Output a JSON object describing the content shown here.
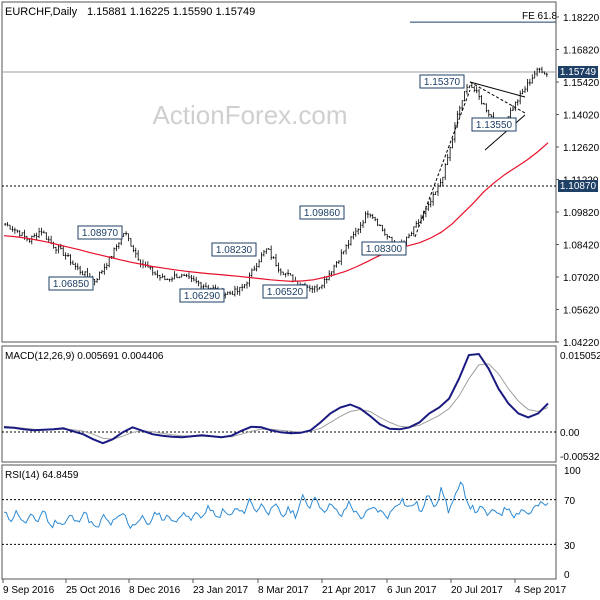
{
  "header": {
    "symbol_tf": "EURCHF,Daily",
    "ohlc": "1.15881 1.16225 1.15590 1.15749"
  },
  "watermark": "ActionForex.com",
  "colors": {
    "candle": "#000000",
    "ma": "#e8102a",
    "macd": "#1a1a80",
    "signal": "#a0a0a0",
    "rsi": "#2d8ad4",
    "grid": "#9aa0a8",
    "fe": "#1e3f66"
  },
  "chart_data": [
    {
      "type": "candlestick",
      "name": "price",
      "x_ticks": [
        "9 Sep 2016",
        "25 Oct 2016",
        "8 Dec 2016",
        "23 Jan 2017",
        "8 Mar 2017",
        "21 Apr 2017",
        "6 Jun 2017",
        "20 Jul 2017",
        "4 Sep 2017"
      ],
      "y_ticks": [
        "1.18220",
        "1.16820",
        "1.15420",
        "1.14020",
        "1.12620",
        "1.11220",
        "1.09820",
        "1.08420",
        "1.07020",
        "1.05620",
        "1.04220"
      ],
      "ylim": [
        1.0422,
        1.1822
      ],
      "last_price": "1.15749",
      "level_line": "1.10870",
      "fib_label": "FE 61.8",
      "fib_level": 1.18,
      "annotations": [
        {
          "text": "1.08970",
          "value": 1.0897
        },
        {
          "text": "1.06850",
          "value": 1.0685
        },
        {
          "text": "1.08230",
          "value": 1.0823
        },
        {
          "text": "1.06290",
          "value": 1.0629
        },
        {
          "text": "1.06520",
          "value": 1.0652
        },
        {
          "text": "1.09860",
          "value": 1.0986
        },
        {
          "text": "1.08300",
          "value": 1.083
        },
        {
          "text": "1.15370",
          "value": 1.1537
        },
        {
          "text": "1.13550",
          "value": 1.1355
        }
      ],
      "close_path": [
        1.093,
        1.0915,
        1.09,
        1.088,
        1.086,
        1.088,
        1.0905,
        1.087,
        1.084,
        1.082,
        1.08,
        1.077,
        1.074,
        1.072,
        1.07,
        1.0685,
        1.072,
        1.076,
        1.08,
        1.085,
        1.0897,
        1.085,
        1.08,
        1.076,
        1.074,
        1.072,
        1.07,
        1.069,
        1.07,
        1.071,
        1.07,
        1.069,
        1.068,
        1.067,
        1.066,
        1.065,
        1.064,
        1.063,
        1.0635,
        1.064,
        1.066,
        1.07,
        1.075,
        1.079,
        1.0823,
        1.078,
        1.074,
        1.072,
        1.07,
        1.068,
        1.067,
        1.066,
        1.0652,
        1.067,
        1.07,
        1.074,
        1.078,
        1.082,
        1.086,
        1.09,
        1.094,
        1.0986,
        1.096,
        1.092,
        1.088,
        1.085,
        1.083,
        1.085,
        1.088,
        1.092,
        1.096,
        1.1,
        1.105,
        1.11,
        1.118,
        1.128,
        1.14,
        1.148,
        1.1537,
        1.15,
        1.146,
        1.142,
        1.138,
        1.1355,
        1.138,
        1.142,
        1.146,
        1.15,
        1.154,
        1.158,
        1.16,
        1.1575
      ],
      "ma_path": [
        1.088,
        1.0876,
        1.087,
        1.0862,
        1.0853,
        1.0842,
        1.0831,
        1.082,
        1.0808,
        1.0797,
        1.0786,
        1.0775,
        1.0765,
        1.0756,
        1.0747,
        1.074,
        1.0733,
        1.0727,
        1.0722,
        1.0717,
        1.0713,
        1.0709,
        1.0705,
        1.07,
        1.0695,
        1.069,
        1.0686,
        1.0683,
        1.0685,
        1.069,
        1.07,
        1.0712,
        1.0726,
        1.0745,
        1.0767,
        1.079,
        1.081,
        1.0826,
        1.0838,
        1.085,
        1.087,
        1.0895,
        1.093,
        1.0975,
        1.102,
        1.107,
        1.111,
        1.1145,
        1.1175,
        1.1205,
        1.124,
        1.128
      ]
    },
    {
      "type": "line",
      "name": "macd",
      "label": "MACD(12,26,9) 0.005691 0.004406",
      "y_ticks": [
        "0.015052",
        "0.00",
        "-0.005321"
      ],
      "ylim": [
        -0.0068,
        0.0158
      ],
      "macd_path": [
        0.0002,
        0.0001,
        -0.0002,
        -0.0004,
        -0.0003,
        -0.0002,
        0.0,
        -0.0006,
        -0.0012,
        -0.0022,
        -0.003,
        -0.0022,
        -0.0008,
        0.0002,
        -0.0005,
        -0.0012,
        -0.0015,
        -0.0017,
        -0.0018,
        -0.0016,
        -0.0014,
        -0.0016,
        -0.0018,
        -0.0015,
        -0.0005,
        0.0003,
        0.0002,
        -0.0004,
        -0.0008,
        -0.001,
        -0.0009,
        -0.0004,
        0.0012,
        0.003,
        0.0042,
        0.0048,
        0.004,
        0.0025,
        0.0008,
        -0.0001,
        -0.0002,
        0.0002,
        0.0012,
        0.003,
        0.0042,
        0.006,
        0.01,
        0.0148,
        0.015,
        0.012,
        0.008,
        0.005,
        0.003,
        0.0022,
        0.003,
        0.005
      ],
      "signal_path": [
        0.0004,
        0.0002,
        0.0,
        -0.0002,
        -0.0003,
        -0.0003,
        -0.0002,
        -0.0003,
        -0.0006,
        -0.0012,
        -0.002,
        -0.0022,
        -0.0016,
        -0.0008,
        -0.0005,
        -0.0007,
        -0.001,
        -0.0013,
        -0.0015,
        -0.0016,
        -0.0016,
        -0.0016,
        -0.0017,
        -0.0017,
        -0.0012,
        -0.0006,
        -0.0002,
        -0.0002,
        -0.0004,
        -0.0006,
        -0.0008,
        -0.0006,
        0.0,
        0.0012,
        0.0024,
        0.0034,
        0.0038,
        0.0034,
        0.0022,
        0.0012,
        0.0004,
        0.0002,
        0.0006,
        0.0016,
        0.0026,
        0.004,
        0.0065,
        0.01,
        0.0128,
        0.013,
        0.011,
        0.008,
        0.0055,
        0.0038,
        0.0034,
        0.0042
      ]
    },
    {
      "type": "line",
      "name": "rsi",
      "label": "RSI(14) 64.8459",
      "y_ticks": [
        "100",
        "70",
        "30",
        "0"
      ],
      "ylim": [
        0,
        100
      ],
      "rsi_path": [
        58,
        52,
        60,
        48,
        55,
        50,
        62,
        45,
        52,
        47,
        56,
        49,
        60,
        50,
        43,
        55,
        48,
        52,
        58,
        46,
        50,
        54,
        47,
        60,
        52,
        56,
        48,
        62,
        50,
        58,
        55,
        64,
        52,
        60,
        55,
        62,
        57,
        70,
        60,
        66,
        58,
        64,
        55,
        62,
        56,
        72,
        63,
        75,
        58,
        66,
        60,
        55,
        68,
        58,
        54,
        60,
        62,
        58,
        55,
        66,
        70,
        62,
        68,
        58,
        76,
        64,
        80,
        60,
        72,
        85,
        66,
        60,
        62,
        56,
        60,
        58,
        64,
        55,
        62,
        57,
        63,
        66,
        65
      ]
    }
  ]
}
